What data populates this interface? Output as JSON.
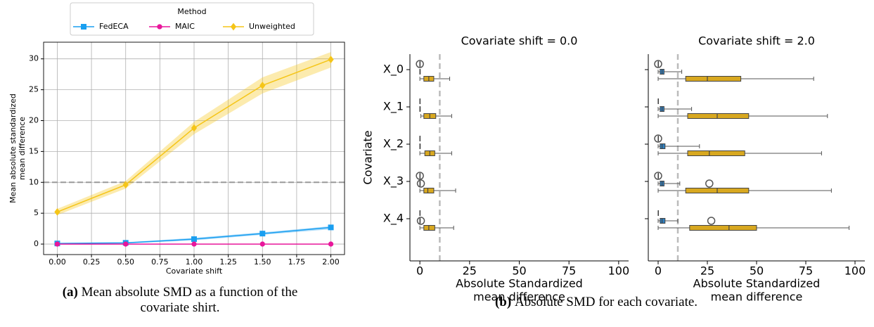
{
  "captions": [
    {
      "label": "(a)",
      "text": [
        "Mean absolute SMD as a function of the",
        "covariate shirt."
      ]
    },
    {
      "label": "(b)",
      "text": [
        "Absolute SMD for each covariate."
      ]
    }
  ],
  "chart_data": [
    {
      "type": "line",
      "xlabel": "Covariate shift",
      "ylabel": [
        "Mean absolute standardized",
        "mean difference"
      ],
      "x": [
        0,
        0.5,
        1,
        1.5,
        2
      ],
      "xlim": [
        -0.1,
        2.1
      ],
      "xticks": [
        {
          "value": 0,
          "label": "0.00"
        },
        {
          "value": 0.25,
          "label": "0.25"
        },
        {
          "value": 0.5,
          "label": "0.50"
        },
        {
          "value": 0.75,
          "label": "0.75"
        },
        {
          "value": 1,
          "label": "1.00"
        },
        {
          "value": 1.25,
          "label": "1.25"
        },
        {
          "value": 1.5,
          "label": "1.50"
        },
        {
          "value": 1.75,
          "label": "1.75"
        },
        {
          "value": 2,
          "label": "2.00"
        }
      ],
      "ylim": [
        -1.7,
        32.7
      ],
      "yticks": [
        0,
        5,
        10,
        15,
        20,
        25,
        30
      ],
      "grid": true,
      "hline": 10,
      "legend": {
        "title": "Method",
        "position": "top"
      },
      "series": [
        {
          "name": "FedECA",
          "color": "#1a9ff0",
          "marker": "square",
          "values": [
            0.1,
            0.2,
            0.8,
            1.7,
            2.7
          ],
          "lower": [
            0,
            0.1,
            0.6,
            1.5,
            2.4
          ],
          "upper": [
            0.2,
            0.3,
            1.0,
            1.9,
            2.9
          ]
        },
        {
          "name": "MAIC",
          "color": "#e8179b",
          "marker": "circle",
          "values": [
            0,
            0,
            0,
            0,
            0
          ],
          "lower": [
            0,
            0,
            0,
            0,
            0
          ],
          "upper": [
            0,
            0,
            0,
            0,
            0
          ]
        },
        {
          "name": "Unweighted",
          "color": "#f5c518",
          "marker": "diamond",
          "values": [
            5.2,
            9.6,
            18.8,
            25.7,
            29.9
          ],
          "lower": [
            4.7,
            9.0,
            17.8,
            24.4,
            28.6
          ],
          "upper": [
            5.7,
            10.2,
            19.8,
            27.0,
            31.1
          ]
        }
      ]
    },
    {
      "type": "box",
      "title": "Covariate shift = 0.0",
      "xlabel": [
        "Absolute Standardized",
        "mean difference"
      ],
      "ylabel": "Covariate",
      "categories": [
        "X_0",
        "X_1",
        "X_2",
        "X_3",
        "X_4"
      ],
      "xlim": [
        -5,
        105
      ],
      "xticks": [
        0,
        25,
        50,
        75,
        100
      ],
      "vline": 10,
      "series": [
        {
          "color": "#b8157e",
          "boxes": [
            {
              "whislo": 0,
              "q1": 0,
              "med": 0,
              "q3": 0,
              "whishi": 0,
              "fliers": [
                0
              ]
            },
            {
              "whislo": 0,
              "q1": 0,
              "med": 0,
              "q3": 0,
              "whishi": 0,
              "fliers": []
            },
            {
              "whislo": 0,
              "q1": 0,
              "med": 0,
              "q3": 0,
              "whishi": 0,
              "fliers": []
            },
            {
              "whislo": 0,
              "q1": 0,
              "med": 0,
              "q3": 0,
              "whishi": 0,
              "fliers": [
                0
              ]
            },
            {
              "whislo": 0,
              "q1": 0,
              "med": 0,
              "q3": 0,
              "whishi": 0,
              "fliers": []
            }
          ]
        },
        {
          "color": "#2e7fc0",
          "boxes": [
            {
              "whislo": 0,
              "q1": 0,
              "med": 0,
              "q3": 0.1,
              "whishi": 0.2,
              "fliers": []
            },
            {
              "whislo": 0,
              "q1": 0,
              "med": 0,
              "q3": 0.1,
              "whishi": 0.2,
              "fliers": []
            },
            {
              "whislo": 0,
              "q1": 0,
              "med": 0,
              "q3": 0.1,
              "whishi": 0.2,
              "fliers": []
            },
            {
              "whislo": 0,
              "q1": 0,
              "med": 0,
              "q3": 0.1,
              "whishi": 0.2,
              "fliers": [
                0.5
              ]
            },
            {
              "whislo": 0,
              "q1": 0,
              "med": 0,
              "q3": 0.1,
              "whishi": 0.2,
              "fliers": [
                0.5
              ]
            }
          ]
        },
        {
          "color": "#d8a820",
          "boxes": [
            {
              "whislo": 0,
              "q1": 2,
              "med": 4.5,
              "q3": 7,
              "whishi": 15,
              "fliers": []
            },
            {
              "whislo": 0.5,
              "q1": 2,
              "med": 5,
              "q3": 8,
              "whishi": 16,
              "fliers": []
            },
            {
              "whislo": 0,
              "q1": 2.5,
              "med": 5,
              "q3": 7.5,
              "whishi": 16,
              "fliers": []
            },
            {
              "whislo": 0,
              "q1": 2,
              "med": 4,
              "q3": 7,
              "whishi": 18,
              "fliers": []
            },
            {
              "whislo": 0,
              "q1": 2,
              "med": 4.5,
              "q3": 7.5,
              "whishi": 17,
              "fliers": []
            }
          ]
        }
      ]
    },
    {
      "type": "box",
      "title": "Covariate shift = 2.0",
      "xlabel": [
        "Absolute Standardized",
        "mean difference"
      ],
      "categories": [
        null,
        null,
        null,
        null,
        null
      ],
      "xlim": [
        -5,
        105
      ],
      "xticks": [
        0,
        25,
        50,
        75,
        100
      ],
      "vline": 10,
      "series": [
        {
          "color": "#b8157e",
          "boxes": [
            {
              "whislo": 0,
              "q1": 0,
              "med": 0,
              "q3": 0,
              "whishi": 0,
              "fliers": [
                0
              ]
            },
            {
              "whislo": 0,
              "q1": 0,
              "med": 0,
              "q3": 0,
              "whishi": 0,
              "fliers": []
            },
            {
              "whislo": 0,
              "q1": 0,
              "med": 0,
              "q3": 0,
              "whishi": 0,
              "fliers": [
                0
              ]
            },
            {
              "whislo": 0,
              "q1": 0,
              "med": 0,
              "q3": 0,
              "whishi": 0,
              "fliers": [
                0
              ]
            },
            {
              "whislo": 0,
              "q1": 0,
              "med": 0,
              "q3": 0,
              "whishi": 0,
              "fliers": []
            }
          ]
        },
        {
          "color": "#2e7fc0",
          "boxes": [
            {
              "whislo": 0,
              "q1": 1,
              "med": 2,
              "q3": 3,
              "whishi": 12,
              "fliers": []
            },
            {
              "whislo": 0,
              "q1": 1,
              "med": 2,
              "q3": 3,
              "whishi": 17,
              "fliers": []
            },
            {
              "whislo": 0,
              "q1": 1,
              "med": 2,
              "q3": 3.5,
              "whishi": 21,
              "fliers": []
            },
            {
              "whislo": 0,
              "q1": 1,
              "med": 2,
              "q3": 3,
              "whishi": 11,
              "fliers": [
                26
              ]
            },
            {
              "whislo": 0,
              "q1": 1,
              "med": 2,
              "q3": 3.5,
              "whishi": 10,
              "fliers": [
                27
              ]
            }
          ]
        },
        {
          "color": "#d8a820",
          "boxes": [
            {
              "whislo": 0,
              "q1": 14,
              "med": 25,
              "q3": 42,
              "whishi": 79,
              "fliers": []
            },
            {
              "whislo": 0,
              "q1": 15,
              "med": 30,
              "q3": 46,
              "whishi": 86,
              "fliers": []
            },
            {
              "whislo": 0,
              "q1": 15,
              "med": 26,
              "q3": 44,
              "whishi": 83,
              "fliers": []
            },
            {
              "whislo": 0,
              "q1": 14,
              "med": 30,
              "q3": 46,
              "whishi": 88,
              "fliers": []
            },
            {
              "whislo": 0,
              "q1": 16,
              "med": 36,
              "q3": 50,
              "whishi": 97,
              "fliers": []
            }
          ]
        }
      ]
    }
  ]
}
